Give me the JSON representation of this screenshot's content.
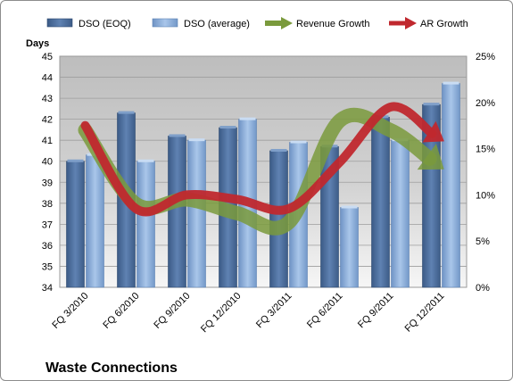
{
  "chart_data": {
    "type": "bar",
    "title": "Waste Connections",
    "ylabel": "Days",
    "categories": [
      "FQ 3/2010",
      "FQ 6/2010",
      "FQ 9/2010",
      "FQ 12/2010",
      "FQ 3/2011",
      "FQ 6/2011",
      "FQ 9/2011",
      "FQ 12/2011"
    ],
    "ylim": [
      34,
      45
    ],
    "yticks": [
      34,
      35,
      36,
      37,
      38,
      39,
      40,
      41,
      42,
      43,
      44,
      45
    ],
    "y2lim": [
      0,
      25
    ],
    "y2ticks": [
      "0%",
      "5%",
      "10%",
      "15%",
      "20%",
      "25%"
    ],
    "series": [
      {
        "name": "DSO (EOQ)",
        "kind": "bar",
        "axis": "left",
        "color": "#4f6f9a",
        "values": [
          40.0,
          42.3,
          41.2,
          41.6,
          40.5,
          40.7,
          42.1,
          42.7
        ]
      },
      {
        "name": "DSO (average)",
        "kind": "bar",
        "axis": "left",
        "color": "#8fb0d8",
        "values": [
          40.3,
          40.0,
          41.0,
          42.0,
          40.9,
          37.8,
          41.0,
          43.7
        ]
      },
      {
        "name": "Revenue Growth",
        "kind": "line",
        "axis": "right",
        "unit": "%",
        "color": "#7a9a3c",
        "values": [
          17.0,
          9.0,
          9.5,
          8.0,
          7.0,
          18.0,
          17.0,
          13.0
        ]
      },
      {
        "name": "AR Growth",
        "kind": "line",
        "axis": "right",
        "unit": "%",
        "color": "#c0282e",
        "values": [
          17.5,
          8.5,
          10.0,
          9.5,
          8.5,
          13.5,
          19.5,
          16.0
        ]
      }
    ],
    "legend": "top",
    "grid": true
  }
}
